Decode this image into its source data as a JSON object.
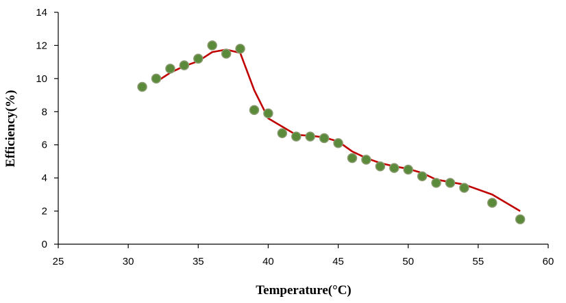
{
  "chart_data": {
    "type": "scatter",
    "title": "",
    "xlabel": "Temperature(°C)",
    "ylabel": "Efficiency(%)",
    "xlim": [
      25,
      60
    ],
    "ylim": [
      0,
      14
    ],
    "x_ticks": [
      25,
      30,
      35,
      40,
      45,
      50,
      55,
      60
    ],
    "y_ticks": [
      0,
      2,
      4,
      6,
      8,
      10,
      12,
      14
    ],
    "grid": false,
    "legend": "none",
    "colors": {
      "points": "#5a8a3a",
      "point_edge": "#8a9a70",
      "line": "#c00000",
      "axis": "#000000"
    },
    "series": [
      {
        "type": "scatter",
        "points": [
          [
            31,
            9.5
          ],
          [
            32,
            10.0
          ],
          [
            33,
            10.6
          ],
          [
            34,
            10.8
          ],
          [
            35,
            11.2
          ],
          [
            36,
            12.0
          ],
          [
            37,
            11.5
          ],
          [
            38,
            11.8
          ],
          [
            39,
            8.1
          ],
          [
            40,
            7.9
          ],
          [
            41,
            6.7
          ],
          [
            42,
            6.5
          ],
          [
            43,
            6.5
          ],
          [
            44,
            6.4
          ],
          [
            45,
            6.1
          ],
          [
            46,
            5.2
          ],
          [
            47,
            5.1
          ],
          [
            48,
            4.7
          ],
          [
            49,
            4.6
          ],
          [
            50,
            4.5
          ],
          [
            51,
            4.1
          ],
          [
            52,
            3.7
          ],
          [
            53,
            3.7
          ],
          [
            54,
            3.4
          ],
          [
            56,
            2.5
          ],
          [
            58,
            1.5
          ]
        ]
      },
      {
        "type": "line",
        "points": [
          [
            32,
            9.8
          ],
          [
            33,
            10.35
          ],
          [
            34,
            10.75
          ],
          [
            35,
            11.05
          ],
          [
            36,
            11.6
          ],
          [
            37,
            11.75
          ],
          [
            38,
            11.55
          ],
          [
            39,
            9.3
          ],
          [
            40,
            7.6
          ],
          [
            41,
            7.1
          ],
          [
            42,
            6.6
          ],
          [
            43,
            6.55
          ],
          [
            44,
            6.45
          ],
          [
            45,
            6.2
          ],
          [
            46,
            5.6
          ],
          [
            47,
            5.2
          ],
          [
            48,
            4.9
          ],
          [
            49,
            4.7
          ],
          [
            50,
            4.55
          ],
          [
            51,
            4.3
          ],
          [
            52,
            3.9
          ],
          [
            53,
            3.75
          ],
          [
            54,
            3.6
          ],
          [
            56,
            3.0
          ],
          [
            58,
            2.0
          ]
        ]
      }
    ]
  }
}
